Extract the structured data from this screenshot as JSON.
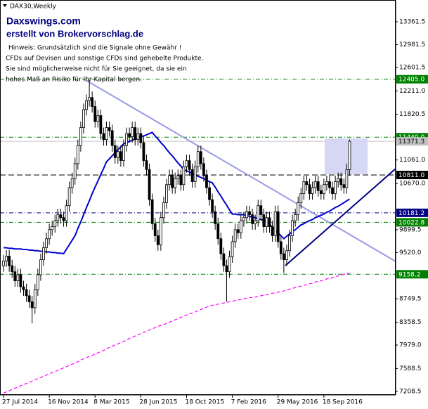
{
  "chart_data": {
    "type": "candlestick",
    "title": "DAX30,Weekly",
    "annotations": [
      "Daxswings.com",
      "erstellt von Brokervorschlag.de",
      "Hinweis: Grundsätzlich sind die Signale ohne Gewähr !",
      "CFDs auf Devisen und sonstige CFDs sind gehebelte Produkte.",
      "Sie sind möglicherweise nicht für Sie geeignet, da sie ein",
      "hohes Maß an Risiko für Ihr Kapital bergen."
    ],
    "categories": [
      "27 Jul 2014",
      null,
      null,
      null,
      null,
      null,
      null,
      null,
      null,
      null,
      null,
      null,
      null,
      null,
      null,
      null,
      "16 Nov 2014",
      null,
      null,
      null,
      null,
      null,
      null,
      null,
      null,
      null,
      null,
      null,
      null,
      null,
      null,
      null,
      "8 Mar 2015",
      null,
      null,
      null,
      null,
      null,
      null,
      null,
      null,
      null,
      null,
      null,
      null,
      null,
      null,
      null,
      "28 Jun 2015",
      null,
      null,
      null,
      null,
      null,
      null,
      null,
      null,
      null,
      null,
      null,
      null,
      null,
      null,
      null,
      "18 Oct 2015",
      null,
      null,
      null,
      null,
      null,
      null,
      null,
      null,
      null,
      null,
      null,
      null,
      null,
      null,
      null,
      "7 Feb 2016",
      null,
      null,
      null,
      null,
      null,
      null,
      null,
      null,
      null,
      null,
      null,
      null,
      null,
      null,
      null,
      "29 May 2016",
      null,
      null,
      null,
      null,
      null,
      null,
      null,
      null,
      null,
      null,
      null,
      null,
      null,
      null,
      null,
      "18 Sep 2016",
      null,
      null,
      null,
      null,
      null,
      null,
      null,
      null,
      null
    ],
    "open": [
      9300,
      9380,
      9460,
      9300,
      9200,
      9050,
      9150,
      8950,
      8900,
      8800,
      8700,
      8600,
      8900,
      9150,
      9400,
      9600,
      9750,
      9900,
      9950,
      10050,
      10150,
      10100,
      10050,
      10300,
      10600,
      10750,
      11000,
      11300,
      11600,
      11900,
      12050,
      12100,
      11950,
      11700,
      11800,
      11500,
      11400,
      11600,
      11550,
      11300,
      11100,
      11200,
      11050,
      11300,
      11500,
      11450,
      11600,
      11400,
      11500,
      11350,
      11050,
      10900,
      10400,
      10000,
      9800,
      9650,
      10100,
      10350,
      10650,
      10800,
      10600,
      10750,
      10800,
      10650,
      10950,
      11050,
      10900,
      10700,
      10950,
      11200,
      11000,
      10800,
      10600,
      10400,
      10200,
      10000,
      9750,
      9500,
      9300,
      9200,
      9450,
      9700,
      9900,
      9850,
      10050,
      10100,
      10200,
      10150,
      10000,
      10050,
      10300,
      10150,
      9950,
      10100,
      9950,
      9800,
      10200,
      9700,
      9500,
      9400,
      9550,
      9800,
      10050,
      10150,
      10350,
      10500,
      10700,
      10650,
      10500,
      10600,
      10700,
      10550,
      10500,
      10650,
      10700,
      10600,
      10500,
      10700,
      10750,
      10650,
      10600,
      10900
    ],
    "high": [
      9480,
      9560,
      9560,
      9400,
      9300,
      9250,
      9250,
      9050,
      9000,
      8900,
      8800,
      9000,
      9250,
      9500,
      9700,
      9850,
      10000,
      10050,
      10150,
      10250,
      10250,
      10200,
      10400,
      10700,
      10850,
      11100,
      11400,
      11700,
      12000,
      12150,
      12390,
      12200,
      12050,
      11900,
      11900,
      11600,
      11700,
      11700,
      11650,
      11400,
      11300,
      11300,
      11400,
      11600,
      11600,
      11700,
      11700,
      11600,
      11600,
      11450,
      11150,
      11000,
      10500,
      10100,
      9900,
      10200,
      10450,
      10750,
      10900,
      10900,
      10850,
      10900,
      10900,
      11050,
      11150,
      11150,
      11000,
      11050,
      11300,
      11300,
      11100,
      10900,
      10700,
      10500,
      10300,
      10100,
      9850,
      9600,
      9400,
      9550,
      9800,
      10000,
      10000,
      10150,
      10200,
      10300,
      10300,
      10250,
      10150,
      10400,
      10400,
      10250,
      10200,
      10200,
      10050,
      10300,
      10300,
      9800,
      9600,
      9650,
      9900,
      10150,
      10250,
      10450,
      10600,
      10800,
      10800,
      10750,
      10700,
      10800,
      10800,
      10650,
      10750,
      10800,
      10800,
      10700,
      10800,
      10850,
      10850,
      10750,
      11000,
      11400
    ],
    "low": [
      9200,
      9280,
      9200,
      9100,
      8950,
      8950,
      8850,
      8800,
      8700,
      8600,
      8340,
      8500,
      8800,
      9050,
      9300,
      9500,
      9650,
      9800,
      9850,
      9950,
      10000,
      9950,
      9950,
      10200,
      10500,
      10650,
      10900,
      11200,
      11500,
      11800,
      11950,
      11850,
      11600,
      11600,
      11400,
      11300,
      11300,
      11450,
      11200,
      11000,
      11000,
      10950,
      10950,
      11200,
      11350,
      11350,
      11300,
      11300,
      11250,
      10950,
      10800,
      10300,
      9900,
      9700,
      9550,
      9550,
      10000,
      10250,
      10550,
      10500,
      10500,
      10650,
      10550,
      10550,
      10850,
      10800,
      10600,
      10600,
      10850,
      10900,
      10700,
      10500,
      10300,
      10100,
      9900,
      9650,
      9400,
      9200,
      8700,
      9100,
      9350,
      9600,
      9750,
      9750,
      9950,
      10000,
      10050,
      9900,
      9900,
      9950,
      10050,
      9850,
      9850,
      9850,
      9700,
      9700,
      9600,
      9400,
      9180,
      9300,
      9450,
      9700,
      9950,
      10050,
      10250,
      10400,
      10550,
      10400,
      10400,
      10500,
      10450,
      10400,
      10400,
      10550,
      10500,
      10400,
      10400,
      10600,
      10550,
      10500,
      10500,
      10800
    ],
    "close": [
      9380,
      9460,
      9300,
      9200,
      9050,
      9150,
      8950,
      8900,
      8800,
      8700,
      8600,
      8900,
      9150,
      9400,
      9600,
      9750,
      9900,
      9950,
      10050,
      10150,
      10100,
      10050,
      10300,
      10600,
      10750,
      11000,
      11300,
      11600,
      11900,
      12050,
      12100,
      11950,
      11700,
      11800,
      11500,
      11400,
      11600,
      11550,
      11300,
      11100,
      11200,
      11050,
      11300,
      11500,
      11450,
      11600,
      11400,
      11500,
      11350,
      11050,
      10900,
      10400,
      10000,
      9800,
      9650,
      10100,
      10350,
      10650,
      10800,
      10600,
      10750,
      10800,
      10650,
      10950,
      11050,
      10900,
      10700,
      10950,
      11200,
      11000,
      10800,
      10600,
      10400,
      10200,
      10000,
      9750,
      9500,
      9300,
      9200,
      9450,
      9700,
      9900,
      9850,
      10050,
      10100,
      10200,
      10150,
      10000,
      10050,
      10300,
      10150,
      9950,
      10100,
      9950,
      9800,
      10200,
      9700,
      9500,
      9400,
      9550,
      9800,
      10050,
      10150,
      10350,
      10500,
      10700,
      10650,
      10500,
      10600,
      10700,
      10550,
      10500,
      10650,
      10700,
      10600,
      10500,
      10700,
      10750,
      10650,
      10600,
      10900,
      11371.3
    ],
    "indicators": [
      {
        "color": "#0000cc",
        "dashed": false,
        "values": [
          9600,
          9600,
          9590,
          9590,
          9580,
          9580,
          9580,
          9570,
          9570,
          9560,
          9560,
          9550,
          9550,
          9540,
          9540,
          9530,
          9530,
          9520,
          9520,
          9510,
          9510,
          9500,
          9575,
          9650,
          9725,
          9800,
          9920,
          10030,
          10150,
          10270,
          10380,
          10500,
          10610,
          10710,
          10820,
          10920,
          11030,
          11080,
          11130,
          11180,
          11230,
          11280,
          11330,
          11350,
          11370,
          11390,
          11410,
          11430,
          11450,
          11460,
          11480,
          11500,
          11520,
          11460,
          11410,
          11350,
          11300,
          11240,
          11180,
          11130,
          11070,
          11010,
          10960,
          10900,
          10880,
          10860,
          10830,
          10810,
          10790,
          10770,
          10750,
          10720,
          10700,
          10680,
          10610,
          10530,
          10460,
          10380,
          10310,
          10230,
          10160,
          10160,
          10150,
          10150,
          10150,
          10140,
          10120,
          10110,
          10100,
          10080,
          10070,
          10050,
          10040,
          9990,
          9940,
          9890,
          9850,
          9800,
          9750,
          9790,
          9830,
          9870,
          9900,
          9940,
          9980,
          10000,
          10030,
          10050,
          10070,
          10100,
          10120,
          10140,
          10160,
          10190,
          10210,
          10240,
          10270,
          10290,
          10320,
          10350,
          10380,
          10410
        ]
      },
      {
        "color": "#ff00ff",
        "dashed": true,
        "values": [
          7180,
          7200,
          7220,
          7240,
          7260,
          7280,
          7300,
          7320,
          7340,
          7360,
          7380,
          7400,
          7420,
          7440,
          7460,
          7480,
          7500,
          7520,
          7540,
          7560,
          7580,
          7600,
          7620,
          7640,
          7660,
          7680,
          7700,
          7730,
          7750,
          7770,
          7790,
          7810,
          7830,
          7850,
          7870,
          7890,
          7920,
          7940,
          7960,
          7980,
          8000,
          8020,
          8040,
          8060,
          8090,
          8110,
          8130,
          8150,
          8170,
          8190,
          8210,
          8230,
          8250,
          8270,
          8290,
          8310,
          8320,
          8340,
          8360,
          8380,
          8400,
          8420,
          8440,
          8460,
          8480,
          8500,
          8510,
          8530,
          8550,
          8570,
          8590,
          8610,
          8630,
          8640,
          8650,
          8660,
          8670,
          8680,
          8690,
          8700,
          8710,
          8720,
          8730,
          8740,
          8750,
          8760,
          8770,
          8770,
          8780,
          8790,
          8800,
          8810,
          8820,
          8830,
          8840,
          8850,
          8860,
          8870,
          8880,
          8900,
          8910,
          8920,
          8940,
          8950,
          8960,
          8970,
          8990,
          9000,
          9010,
          9030,
          9040,
          9050,
          9060,
          9080,
          9090,
          9100,
          9120,
          9130,
          9140,
          9160,
          9170,
          9180
        ]
      }
    ],
    "levels": [
      {
        "value": 12405,
        "label": "12405.0",
        "color": "#008000",
        "style": "dashdot"
      },
      {
        "value": 11440,
        "label": "11440.0",
        "color": "#008000",
        "style": "dashdot"
      },
      {
        "value": 11371.3,
        "label": "11371.3",
        "color": "#c0c0c0",
        "style": "solid"
      },
      {
        "value": 10811,
        "label": "10811.0",
        "color": "#000000",
        "style": "dash"
      },
      {
        "value": 10181.2,
        "label": "10181.2",
        "color": "#000080",
        "style": "dashdot"
      },
      {
        "value": 10022.8,
        "label": "10022.8",
        "color": "#008000",
        "style": "dashdot"
      },
      {
        "value": 9158.2,
        "label": "9158.2",
        "color": "#008000",
        "style": "dashdot"
      }
    ],
    "ylim": [
      7149,
      13724
    ],
    "yticks": [
      13361.5,
      12981.5,
      12601.5,
      {
        "value": 12211,
        "label": "12211.0"
      },
      11820.5,
      {
        "value": 11061,
        "label": "11061.0"
      },
      {
        "value": 10670,
        "label": "10670.0"
      },
      9899.5,
      {
        "value": 9520,
        "label": "9520.0"
      },
      8749.5,
      8358.5,
      {
        "value": 7979,
        "label": "7979.0"
      },
      7588.5,
      7208.5
    ]
  }
}
